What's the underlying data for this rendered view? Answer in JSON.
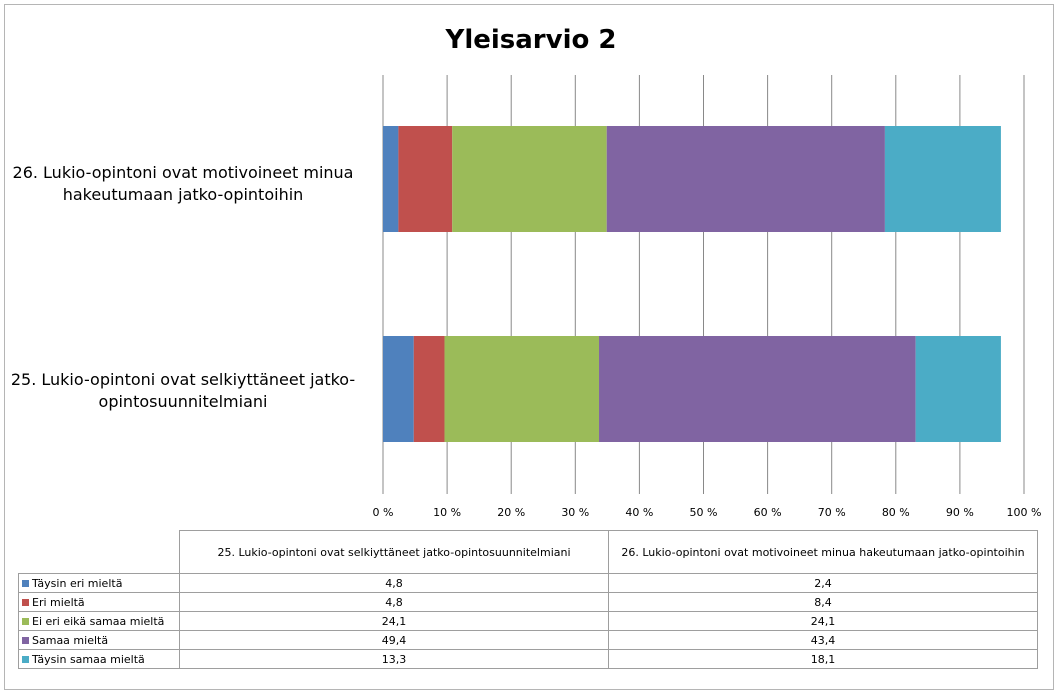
{
  "chart_data": {
    "type": "bar",
    "orientation": "horizontal",
    "stacked": "percent",
    "title": "Yleisarvio 2",
    "categories": [
      "25. Lukio-opintoni ovat selkiyttäneet jatko-opintosuunnitelmiani",
      "26. Lukio-opintoni ovat motivoineet minua hakeutumaan jatko-opintoihin"
    ],
    "category_labels_axis": [
      [
        "25. Lukio-opintoni ovat selkiyttäneet jatko-",
        "opintosuunnitelmiani"
      ],
      [
        "26. Lukio-opintoni ovat motivoineet minua",
        "hakeutumaan jatko-opintoihin"
      ]
    ],
    "table_column_labels": [
      "25. Lukio-opintoni ovat selkiyttäneet jatko-opintosuunnitelmiani",
      "26. Lukio-opintoni ovat motivoineet minua hakeutumaan jatko-opintoihin"
    ],
    "series": [
      {
        "name": "Täysin eri mieltä",
        "color": "#4f81bd",
        "values": [
          4.8,
          2.4
        ],
        "labels": [
          "4,8",
          "2,4"
        ]
      },
      {
        "name": "Eri mieltä",
        "color": "#c0504d",
        "values": [
          4.8,
          8.4
        ],
        "labels": [
          "4,8",
          "8,4"
        ]
      },
      {
        "name": "Ei eri eikä samaa mieltä",
        "color": "#9bbb59",
        "values": [
          24.1,
          24.1
        ],
        "labels": [
          "24,1",
          "24,1"
        ]
      },
      {
        "name": "Samaa mieltä",
        "color": "#8064a2",
        "values": [
          49.4,
          43.4
        ],
        "labels": [
          "49,4",
          "43,4"
        ]
      },
      {
        "name": "Täysin samaa mieltä",
        "color": "#4bacc6",
        "values": [
          13.3,
          18.1
        ],
        "labels": [
          "13,3",
          "18,1"
        ]
      }
    ],
    "xlim": [
      0,
      100
    ],
    "x_ticks": [
      "0 %",
      "10 %",
      "20 %",
      "30 %",
      "40 %",
      "50 %",
      "60 %",
      "70 %",
      "80 %",
      "90 %",
      "100 %"
    ],
    "grid": true,
    "legend": "data table below chart"
  }
}
